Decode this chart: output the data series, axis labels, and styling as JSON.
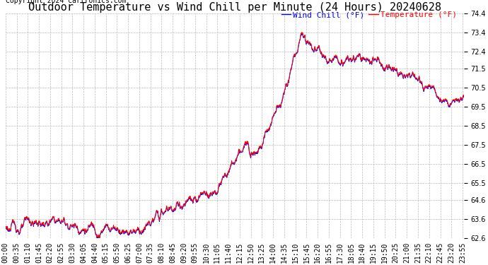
{
  "title": "Outdoor Temperature vs Wind Chill per Minute (24 Hours) 20240628",
  "copyright": "Copyright 2024 Cartronics.com",
  "legend_wind_chill": "Wind Chill (°F)",
  "legend_temperature": "Temperature (°F)",
  "ymin": 62.6,
  "ymax": 74.4,
  "yticks": [
    74.4,
    73.4,
    72.4,
    71.5,
    70.5,
    69.5,
    68.5,
    67.5,
    66.5,
    65.5,
    64.6,
    63.6,
    62.6
  ],
  "background_color": "#ffffff",
  "grid_color": "#bbbbbb",
  "line_color_wind": "#0000ff",
  "line_color_temp": "#ff0000",
  "title_fontsize": 11,
  "tick_fontsize": 7,
  "copyright_fontsize": 7
}
